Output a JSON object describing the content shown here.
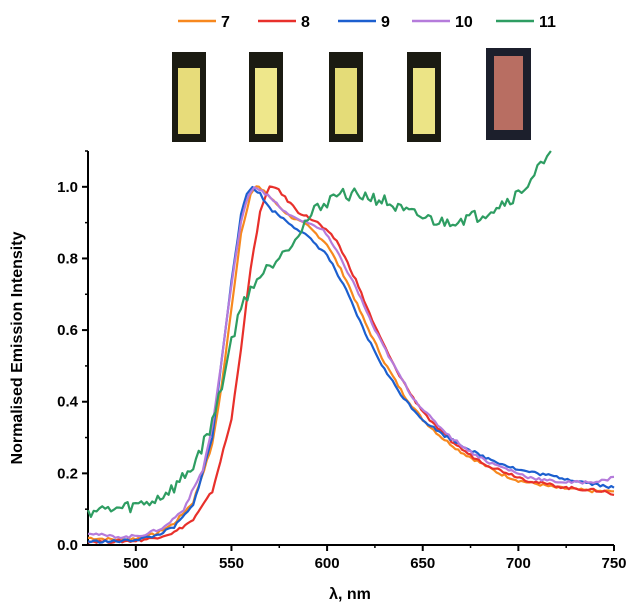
{
  "chart_data": {
    "type": "line",
    "xlabel": "λ, nm",
    "ylabel": "Normalised Emission Intensity",
    "xlim": [
      475,
      750
    ],
    "ylim": [
      0,
      1.1
    ],
    "x_ticks": [
      500,
      550,
      600,
      650,
      700,
      750
    ],
    "y_ticks": [
      0.0,
      0.2,
      0.4,
      0.6,
      0.8,
      1.0
    ],
    "y_tick_labels": [
      "0.0",
      "0.2",
      "0.4",
      "0.6",
      "0.8",
      "1.0"
    ],
    "legend_position": "top",
    "grid": false,
    "series": [
      {
        "name": "7",
        "color": "#F7881E",
        "points": [
          [
            475,
            0.02
          ],
          [
            490,
            0.015
          ],
          [
            500,
            0.018
          ],
          [
            510,
            0.03
          ],
          [
            520,
            0.06
          ],
          [
            530,
            0.12
          ],
          [
            540,
            0.28
          ],
          [
            545,
            0.45
          ],
          [
            550,
            0.66
          ],
          [
            555,
            0.87
          ],
          [
            560,
            0.98
          ],
          [
            563,
            1.0
          ],
          [
            567,
            0.99
          ],
          [
            572,
            0.96
          ],
          [
            580,
            0.92
          ],
          [
            590,
            0.89
          ],
          [
            600,
            0.84
          ],
          [
            610,
            0.74
          ],
          [
            620,
            0.62
          ],
          [
            630,
            0.51
          ],
          [
            640,
            0.42
          ],
          [
            650,
            0.35
          ],
          [
            660,
            0.3
          ],
          [
            670,
            0.26
          ],
          [
            680,
            0.23
          ],
          [
            690,
            0.2
          ],
          [
            700,
            0.18
          ],
          [
            710,
            0.17
          ],
          [
            720,
            0.16
          ],
          [
            730,
            0.155
          ],
          [
            740,
            0.15
          ],
          [
            750,
            0.15
          ]
        ]
      },
      {
        "name": "8",
        "color": "#E8302B",
        "points": [
          [
            475,
            0.01
          ],
          [
            490,
            0.01
          ],
          [
            500,
            0.012
          ],
          [
            510,
            0.02
          ],
          [
            520,
            0.035
          ],
          [
            530,
            0.07
          ],
          [
            540,
            0.15
          ],
          [
            550,
            0.35
          ],
          [
            555,
            0.55
          ],
          [
            560,
            0.77
          ],
          [
            565,
            0.93
          ],
          [
            570,
            1.0
          ],
          [
            573,
            1.0
          ],
          [
            578,
            0.97
          ],
          [
            585,
            0.93
          ],
          [
            595,
            0.9
          ],
          [
            605,
            0.85
          ],
          [
            615,
            0.74
          ],
          [
            625,
            0.61
          ],
          [
            635,
            0.5
          ],
          [
            645,
            0.41
          ],
          [
            655,
            0.34
          ],
          [
            665,
            0.29
          ],
          [
            675,
            0.25
          ],
          [
            685,
            0.22
          ],
          [
            695,
            0.2
          ],
          [
            705,
            0.18
          ],
          [
            715,
            0.17
          ],
          [
            725,
            0.16
          ],
          [
            735,
            0.155
          ],
          [
            745,
            0.15
          ],
          [
            750,
            0.14
          ]
        ]
      },
      {
        "name": "9",
        "color": "#1C5FCF",
        "points": [
          [
            475,
            0.01
          ],
          [
            490,
            0.01
          ],
          [
            500,
            0.015
          ],
          [
            510,
            0.025
          ],
          [
            520,
            0.05
          ],
          [
            530,
            0.11
          ],
          [
            540,
            0.3
          ],
          [
            545,
            0.52
          ],
          [
            550,
            0.74
          ],
          [
            555,
            0.92
          ],
          [
            558,
            0.98
          ],
          [
            561,
            1.0
          ],
          [
            565,
            0.98
          ],
          [
            570,
            0.94
          ],
          [
            580,
            0.9
          ],
          [
            590,
            0.86
          ],
          [
            600,
            0.81
          ],
          [
            610,
            0.71
          ],
          [
            620,
            0.59
          ],
          [
            630,
            0.49
          ],
          [
            640,
            0.41
          ],
          [
            650,
            0.35
          ],
          [
            660,
            0.31
          ],
          [
            670,
            0.28
          ],
          [
            680,
            0.25
          ],
          [
            690,
            0.23
          ],
          [
            700,
            0.21
          ],
          [
            710,
            0.2
          ],
          [
            720,
            0.19
          ],
          [
            730,
            0.18
          ],
          [
            740,
            0.17
          ],
          [
            750,
            0.16
          ]
        ]
      },
      {
        "name": "10",
        "color": "#B57BDB",
        "points": [
          [
            475,
            0.035
          ],
          [
            485,
            0.025
          ],
          [
            495,
            0.022
          ],
          [
            505,
            0.03
          ],
          [
            515,
            0.05
          ],
          [
            525,
            0.1
          ],
          [
            535,
            0.21
          ],
          [
            540,
            0.33
          ],
          [
            545,
            0.52
          ],
          [
            550,
            0.73
          ],
          [
            555,
            0.9
          ],
          [
            559,
            0.98
          ],
          [
            562,
            1.0
          ],
          [
            566,
            0.99
          ],
          [
            572,
            0.96
          ],
          [
            580,
            0.92
          ],
          [
            590,
            0.9
          ],
          [
            598,
            0.88
          ],
          [
            605,
            0.82
          ],
          [
            615,
            0.72
          ],
          [
            625,
            0.6
          ],
          [
            635,
            0.5
          ],
          [
            645,
            0.41
          ],
          [
            655,
            0.35
          ],
          [
            665,
            0.3
          ],
          [
            675,
            0.26
          ],
          [
            685,
            0.23
          ],
          [
            695,
            0.21
          ],
          [
            705,
            0.19
          ],
          [
            715,
            0.18
          ],
          [
            725,
            0.175
          ],
          [
            735,
            0.175
          ],
          [
            745,
            0.18
          ],
          [
            750,
            0.19
          ]
        ]
      },
      {
        "name": "11",
        "color": "#2E9D62",
        "points": [
          [
            475,
            0.095
          ],
          [
            490,
            0.1
          ],
          [
            500,
            0.11
          ],
          [
            510,
            0.125
          ],
          [
            520,
            0.16
          ],
          [
            530,
            0.22
          ],
          [
            540,
            0.34
          ],
          [
            545,
            0.45
          ],
          [
            550,
            0.57
          ],
          [
            555,
            0.66
          ],
          [
            560,
            0.72
          ],
          [
            565,
            0.75
          ],
          [
            570,
            0.78
          ],
          [
            575,
            0.81
          ],
          [
            580,
            0.84
          ],
          [
            585,
            0.87
          ],
          [
            590,
            0.91
          ],
          [
            595,
            0.94
          ],
          [
            600,
            0.96
          ],
          [
            605,
            0.98
          ],
          [
            610,
            0.98
          ],
          [
            620,
            0.975
          ],
          [
            630,
            0.96
          ],
          [
            640,
            0.93
          ],
          [
            650,
            0.915
          ],
          [
            660,
            0.9
          ],
          [
            670,
            0.91
          ],
          [
            680,
            0.92
          ],
          [
            690,
            0.95
          ],
          [
            700,
            0.98
          ],
          [
            705,
            1.01
          ],
          [
            710,
            1.05
          ],
          [
            715,
            1.07
          ],
          [
            717,
            1.1
          ]
        ]
      }
    ]
  }
}
